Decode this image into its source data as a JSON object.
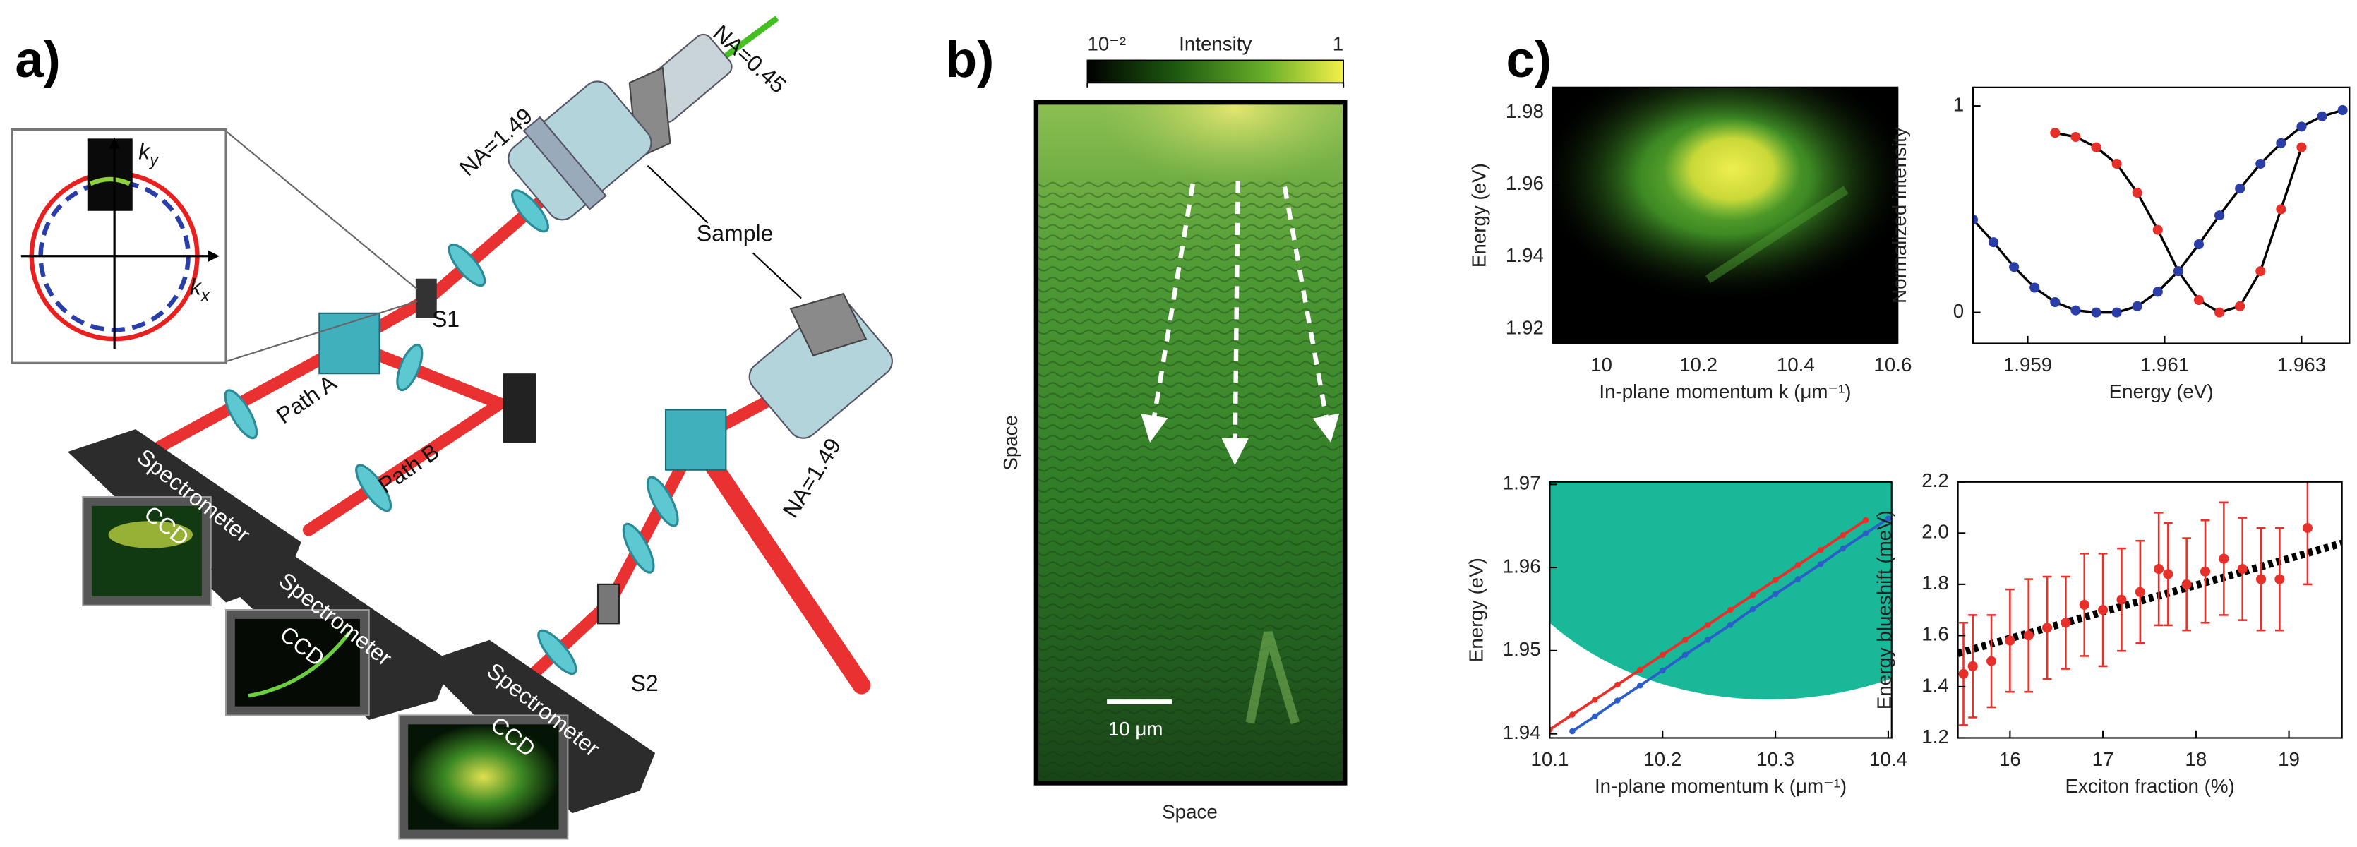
{
  "panel_a": {
    "label": "a)",
    "na_top": "NA=1.49",
    "na_input": "NA=0.45",
    "sample": "Sample",
    "s1": "S1",
    "s2": "S2",
    "path_a": "Path A",
    "path_b": "Path B",
    "na_bottom": "NA=1.49",
    "spectrometers": [
      {
        "name": "Spectrometer",
        "detector": "CCD"
      },
      {
        "name": "Spectrometer",
        "detector": "CCD"
      },
      {
        "name": "Spectrometer",
        "detector": "CCD"
      }
    ],
    "inset_ky": [
      "k",
      "y"
    ],
    "inset_kx": [
      "k",
      "x"
    ]
  },
  "panel_b": {
    "label": "b)",
    "colorbar_title": "Intensity",
    "colorbar_lim": [
      0.01,
      1
    ],
    "colorbar_log": true,
    "colorbar_ticks": [
      {
        "value": 0.01,
        "label": "10⁻²"
      },
      1
    ],
    "ylabel": "Space",
    "xlabel": "Space",
    "scale_bar": "10 μm"
  },
  "panel_c": {
    "label": "c)"
  },
  "chart_data": [
    {
      "type": "image",
      "xlabel": "In-plane momentum k (μm⁻¹)",
      "ylabel": "Energy (eV)",
      "xlim": [
        9.9,
        10.61
      ],
      "xticks": [
        10,
        10.2,
        10.4,
        10.6
      ],
      "ylim": [
        1.916,
        1.987
      ],
      "yticks": [
        1.92,
        1.94,
        1.96,
        1.98
      ]
    },
    {
      "type": "scatter",
      "xlabel": "Energy (eV)",
      "ylabel": "Normalized intensity",
      "xlim": [
        1.9582,
        1.9637
      ],
      "xticks": [
        1.959,
        1.961,
        1.963
      ],
      "ylim": [
        -0.15,
        1.09
      ],
      "yticks": [
        0,
        1
      ],
      "fit_color": "#000000",
      "series": [
        {
          "color": "#e8302a",
          "x": [
            1.9594,
            1.9597,
            1.96,
            1.9603,
            1.9606,
            1.9609,
            1.9612,
            1.9615,
            1.9618,
            1.9621,
            1.9624,
            1.9627,
            1.963
          ],
          "values": [
            0.87,
            0.85,
            0.8,
            0.72,
            0.58,
            0.4,
            0.2,
            0.06,
            0.0,
            0.03,
            0.2,
            0.5,
            0.8
          ]
        },
        {
          "color": "#2b3ea8",
          "x": [
            1.9582,
            1.9585,
            1.9588,
            1.9591,
            1.9594,
            1.9597,
            1.96,
            1.9603,
            1.9606,
            1.9609,
            1.9612,
            1.9615,
            1.9618,
            1.9621,
            1.9624,
            1.9627,
            1.963,
            1.9633,
            1.9636
          ],
          "values": [
            0.45,
            0.34,
            0.22,
            0.12,
            0.05,
            0.01,
            0.0,
            0.0,
            0.03,
            0.1,
            0.2,
            0.33,
            0.47,
            0.6,
            0.72,
            0.82,
            0.9,
            0.95,
            0.98
          ]
        }
      ]
    },
    {
      "type": "line",
      "xlabel": "In-plane momentum k (μm⁻¹)",
      "ylabel": "Energy (eV)",
      "xlim": [
        10.1,
        10.403
      ],
      "xticks": [
        10.1,
        10.2,
        10.3,
        10.4
      ],
      "ylim": [
        1.9395,
        1.9703
      ],
      "yticks": [
        1.94,
        1.95,
        1.96,
        1.97
      ],
      "series": [
        {
          "color": "#e8302a",
          "x": [
            10.1,
            10.12,
            10.14,
            10.16,
            10.18,
            10.2,
            10.22,
            10.24,
            10.26,
            10.28,
            10.3,
            10.32,
            10.34,
            10.36,
            10.38
          ],
          "values": [
            1.9405,
            1.9423,
            1.9441,
            1.9459,
            1.9477,
            1.9495,
            1.9513,
            1.9531,
            1.9549,
            1.9567,
            1.9585,
            1.9603,
            1.9621,
            1.9639,
            1.9657
          ]
        },
        {
          "color": "#2b5ec8",
          "x": [
            10.12,
            10.14,
            10.16,
            10.18,
            10.2,
            10.22,
            10.24,
            10.26,
            10.28,
            10.3,
            10.32,
            10.34,
            10.36,
            10.38,
            10.4
          ],
          "values": [
            1.9403,
            1.9421,
            1.944,
            1.9458,
            1.9476,
            1.9495,
            1.9513,
            1.9531,
            1.955,
            1.9568,
            1.9586,
            1.9604,
            1.9623,
            1.9641,
            1.9659
          ]
        }
      ]
    },
    {
      "type": "errorbar",
      "xlabel": "Exciton fraction (%)",
      "ylabel": "Energy blueshift (meV)",
      "xlim": [
        15.44,
        19.57
      ],
      "xticks": [
        16,
        17,
        18,
        19
      ],
      "ylim": [
        1.2,
        2.2
      ],
      "yticks": [
        1.2,
        1.4,
        1.6,
        1.8,
        {
          "value": 2,
          "label": "2.0"
        },
        2.2
      ],
      "color": "#e8302a",
      "x": [
        15.5,
        15.6,
        15.8,
        16.0,
        16.2,
        16.4,
        16.6,
        16.8,
        17.0,
        17.2,
        17.4,
        17.6,
        17.7,
        17.9,
        18.1,
        18.3,
        18.5,
        18.7,
        18.9,
        19.2
      ],
      "values": [
        1.45,
        1.48,
        1.5,
        1.58,
        1.6,
        1.63,
        1.65,
        1.72,
        1.7,
        1.74,
        1.77,
        1.86,
        1.84,
        1.8,
        1.85,
        1.9,
        1.86,
        1.82,
        1.82,
        2.02
      ],
      "errors": [
        0.2,
        0.2,
        0.18,
        0.2,
        0.22,
        0.2,
        0.18,
        0.2,
        0.22,
        0.2,
        0.2,
        0.22,
        0.2,
        0.18,
        0.2,
        0.22,
        0.2,
        0.2,
        0.2,
        0.22
      ],
      "fit": {
        "color": "#000000",
        "x": [
          15.44,
          19.57
        ],
        "values": [
          1.53,
          1.96
        ]
      }
    }
  ]
}
